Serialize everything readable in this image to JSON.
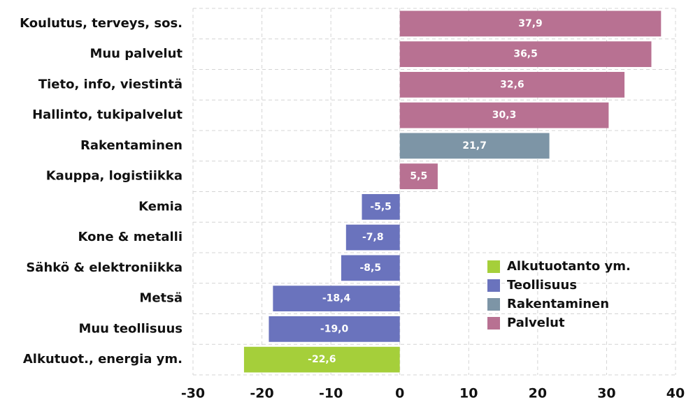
{
  "chart_data": {
    "type": "barh",
    "categories": [
      "Koulutus, terveys, sos.",
      "Muu palvelut",
      "Tieto, info, viestintä",
      "Hallinto, tukipalvelut",
      "Rakentaminen",
      "Kauppa, logistiikka",
      "Kemia",
      "Kone & metalli",
      "Sähkö & elektroniikka",
      "Metsä",
      "Muu teollisuus",
      "Alkutuot., energia ym."
    ],
    "series": [
      {
        "name": "Alkutuotanto ym.",
        "color": "#a5cf3a",
        "values": [
          null,
          null,
          null,
          null,
          null,
          null,
          null,
          null,
          null,
          null,
          null,
          -22.6
        ],
        "value_labels": [
          null,
          null,
          null,
          null,
          null,
          null,
          null,
          null,
          null,
          null,
          null,
          "-22,6"
        ]
      },
      {
        "name": "Teollisuus",
        "color": "#6a73bd",
        "values": [
          null,
          null,
          null,
          null,
          null,
          null,
          -5.5,
          -7.8,
          -8.5,
          -18.4,
          -19.0,
          null
        ],
        "value_labels": [
          null,
          null,
          null,
          null,
          null,
          null,
          "-5,5",
          "-7,8",
          "-8,5",
          "-18,4",
          "-19,0",
          null
        ]
      },
      {
        "name": "Rakentaminen",
        "color": "#7d95a6",
        "values": [
          null,
          null,
          null,
          null,
          21.7,
          null,
          null,
          null,
          null,
          null,
          null,
          null
        ],
        "value_labels": [
          null,
          null,
          null,
          null,
          "21,7",
          null,
          null,
          null,
          null,
          null,
          null,
          null
        ]
      },
      {
        "name": "Palvelut",
        "color": "#b87192",
        "values": [
          37.9,
          36.5,
          32.6,
          30.3,
          null,
          5.5,
          null,
          null,
          null,
          null,
          null,
          null
        ],
        "value_labels": [
          "37,9",
          "36,5",
          "32,6",
          "30,3",
          null,
          "5,5",
          null,
          null,
          null,
          null,
          null,
          null
        ]
      }
    ],
    "xlim": [
      -30,
      40
    ],
    "xticks": [
      -30,
      -20,
      -10,
      0,
      10,
      20,
      30,
      40
    ],
    "grid": true,
    "legend": "lower right"
  }
}
